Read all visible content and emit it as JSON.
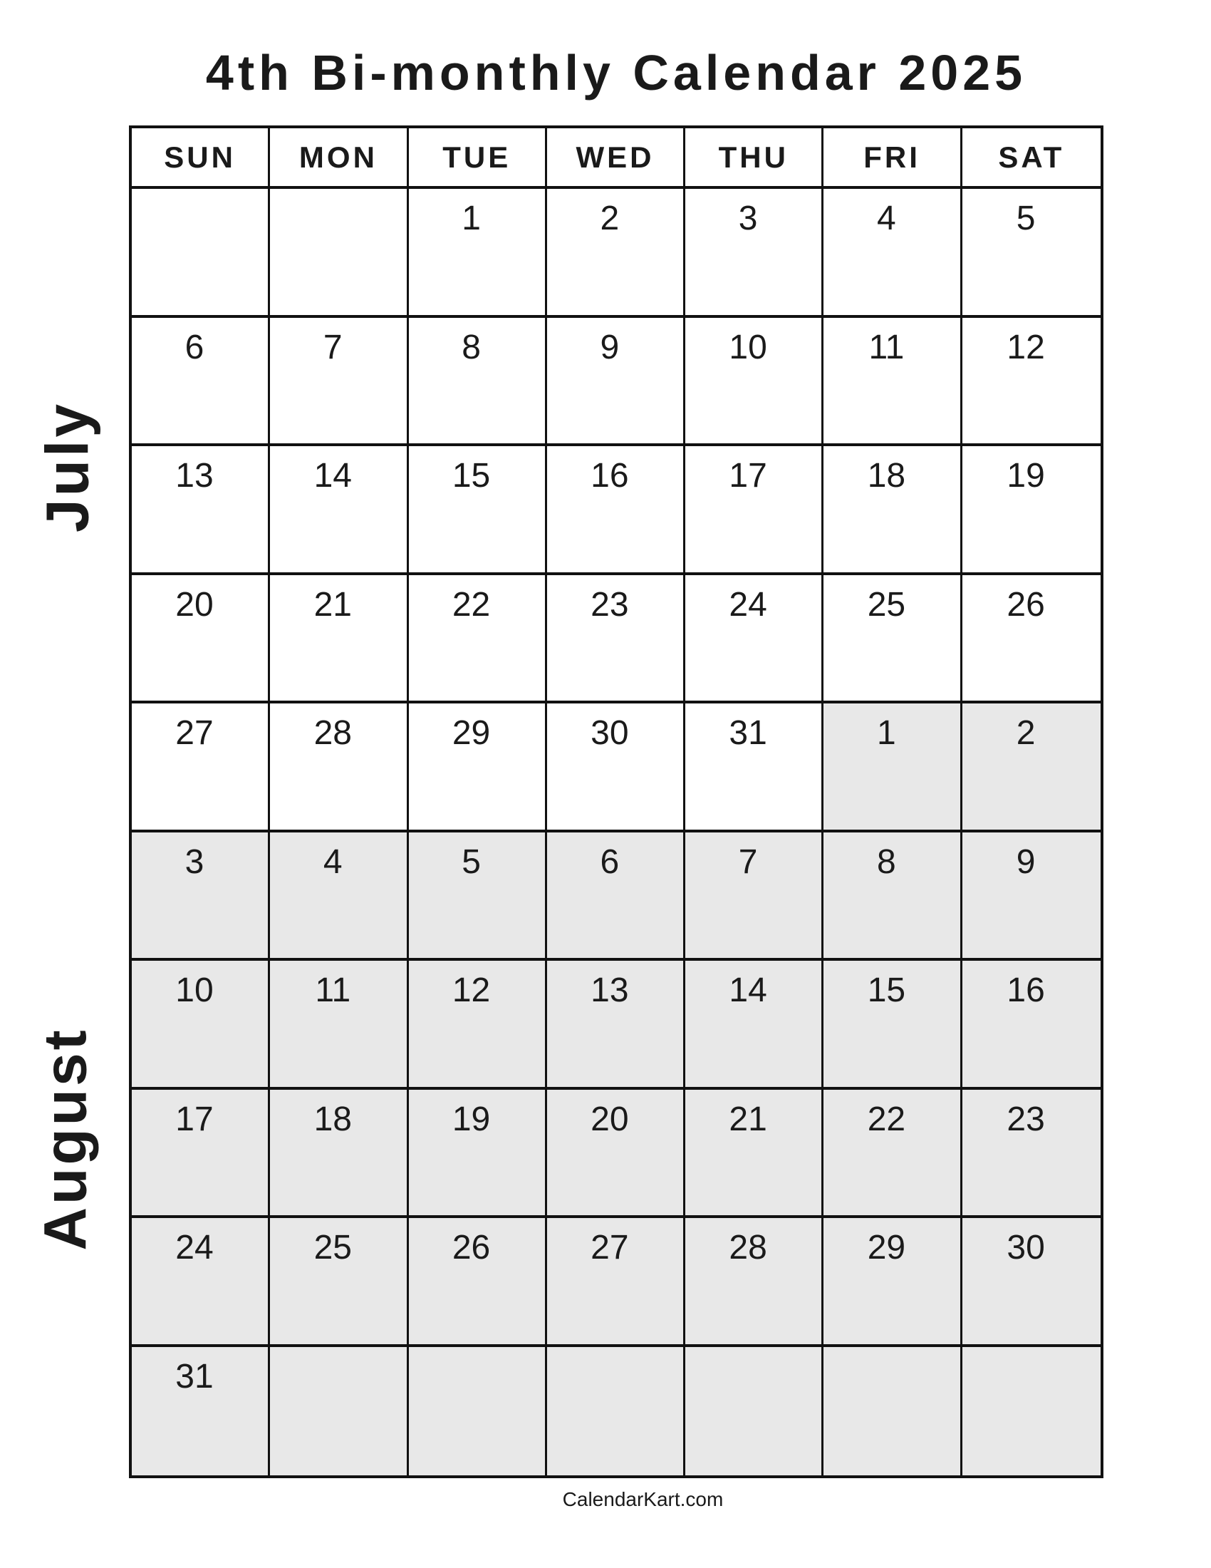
{
  "title": "4th Bi-monthly Calendar 2025",
  "weekdays": [
    "SUN",
    "MON",
    "TUE",
    "WED",
    "THU",
    "FRI",
    "SAT"
  ],
  "months": {
    "first": "July",
    "second": "August"
  },
  "weeks": [
    [
      {
        "d": ""
      },
      {
        "d": ""
      },
      {
        "d": "1"
      },
      {
        "d": "2"
      },
      {
        "d": "3"
      },
      {
        "d": "4"
      },
      {
        "d": "5"
      }
    ],
    [
      {
        "d": "6"
      },
      {
        "d": "7"
      },
      {
        "d": "8"
      },
      {
        "d": "9"
      },
      {
        "d": "10"
      },
      {
        "d": "11"
      },
      {
        "d": "12"
      }
    ],
    [
      {
        "d": "13"
      },
      {
        "d": "14"
      },
      {
        "d": "15"
      },
      {
        "d": "16"
      },
      {
        "d": "17"
      },
      {
        "d": "18"
      },
      {
        "d": "19"
      }
    ],
    [
      {
        "d": "20"
      },
      {
        "d": "21"
      },
      {
        "d": "22"
      },
      {
        "d": "23"
      },
      {
        "d": "24"
      },
      {
        "d": "25"
      },
      {
        "d": "26"
      }
    ],
    [
      {
        "d": "27"
      },
      {
        "d": "28"
      },
      {
        "d": "29"
      },
      {
        "d": "30"
      },
      {
        "d": "31"
      },
      {
        "d": "1",
        "shade": true
      },
      {
        "d": "2",
        "shade": true
      }
    ],
    [
      {
        "d": "3",
        "shade": true
      },
      {
        "d": "4",
        "shade": true
      },
      {
        "d": "5",
        "shade": true
      },
      {
        "d": "6",
        "shade": true
      },
      {
        "d": "7",
        "shade": true
      },
      {
        "d": "8",
        "shade": true
      },
      {
        "d": "9",
        "shade": true
      }
    ],
    [
      {
        "d": "10",
        "shade": true
      },
      {
        "d": "11",
        "shade": true
      },
      {
        "d": "12",
        "shade": true
      },
      {
        "d": "13",
        "shade": true
      },
      {
        "d": "14",
        "shade": true
      },
      {
        "d": "15",
        "shade": true
      },
      {
        "d": "16",
        "shade": true
      }
    ],
    [
      {
        "d": "17",
        "shade": true
      },
      {
        "d": "18",
        "shade": true
      },
      {
        "d": "19",
        "shade": true
      },
      {
        "d": "20",
        "shade": true
      },
      {
        "d": "21",
        "shade": true
      },
      {
        "d": "22",
        "shade": true
      },
      {
        "d": "23",
        "shade": true
      }
    ],
    [
      {
        "d": "24",
        "shade": true
      },
      {
        "d": "25",
        "shade": true
      },
      {
        "d": "26",
        "shade": true
      },
      {
        "d": "27",
        "shade": true
      },
      {
        "d": "28",
        "shade": true
      },
      {
        "d": "29",
        "shade": true
      },
      {
        "d": "30",
        "shade": true
      }
    ],
    [
      {
        "d": "31",
        "shade": true
      },
      {
        "d": "",
        "shade": true
      },
      {
        "d": "",
        "shade": true
      },
      {
        "d": "",
        "shade": true
      },
      {
        "d": "",
        "shade": true
      },
      {
        "d": "",
        "shade": true
      },
      {
        "d": "",
        "shade": true
      }
    ]
  ],
  "colors": {
    "second_month_shade": "#e8e8e8",
    "grid_lines": "#111111"
  },
  "footer": "CalendarKart.com"
}
